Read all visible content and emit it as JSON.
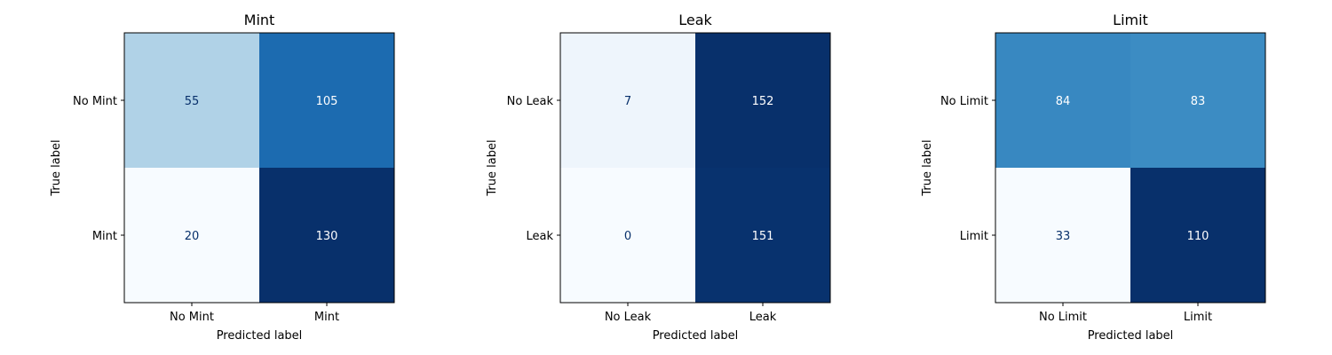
{
  "chart_data": [
    {
      "type": "heatmap",
      "title": "Mint",
      "xlabel": "Predicted label",
      "ylabel": "True label",
      "x_ticklabels": [
        "No Mint",
        "Mint"
      ],
      "y_ticklabels": [
        "No Mint",
        "Mint"
      ],
      "matrix": [
        [
          55,
          105
        ],
        [
          20,
          130
        ]
      ],
      "colormap": "Blues",
      "grid": false
    },
    {
      "type": "heatmap",
      "title": "Leak",
      "xlabel": "Predicted label",
      "ylabel": "True label",
      "x_ticklabels": [
        "No Leak",
        "Leak"
      ],
      "y_ticklabels": [
        "No Leak",
        "Leak"
      ],
      "matrix": [
        [
          7,
          152
        ],
        [
          0,
          151
        ]
      ],
      "colormap": "Blues",
      "grid": false
    },
    {
      "type": "heatmap",
      "title": "Limit",
      "xlabel": "Predicted label",
      "ylabel": "True label",
      "x_ticklabels": [
        "No Limit",
        "Limit"
      ],
      "y_ticklabels": [
        "No Limit",
        "Limit"
      ],
      "matrix": [
        [
          84,
          83
        ],
        [
          33,
          110
        ]
      ],
      "colormap": "Blues",
      "grid": false
    }
  ]
}
